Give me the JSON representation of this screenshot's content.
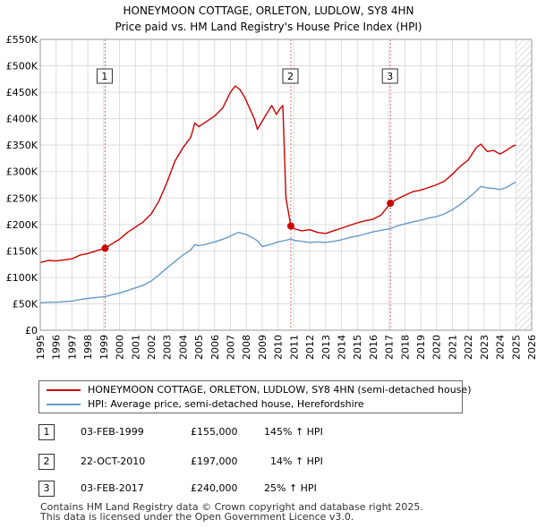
{
  "chart_data": {
    "type": "line",
    "title": "HONEYMOON COTTAGE, ORLETON, LUDLOW, SY8 4HN",
    "subtitle": "Price paid vs. HM Land Registry's House Price Index (HPI)",
    "xlabel": "",
    "ylabel": "",
    "xlim": [
      1995,
      2026
    ],
    "ylim": [
      0,
      550000
    ],
    "x_ticks": [
      "1995",
      "1996",
      "1997",
      "1998",
      "1999",
      "2000",
      "2001",
      "2002",
      "2003",
      "2004",
      "2005",
      "2006",
      "2007",
      "2008",
      "2009",
      "2010",
      "2011",
      "2012",
      "2013",
      "2014",
      "2015",
      "2016",
      "2017",
      "2018",
      "2019",
      "2020",
      "2021",
      "2022",
      "2023",
      "2024",
      "2025",
      "2026"
    ],
    "y_ticks": [
      {
        "value": 0,
        "label": "£0"
      },
      {
        "value": 50000,
        "label": "£50K"
      },
      {
        "value": 100000,
        "label": "£100K"
      },
      {
        "value": 150000,
        "label": "£150K"
      },
      {
        "value": 200000,
        "label": "£200K"
      },
      {
        "value": 250000,
        "label": "£250K"
      },
      {
        "value": 300000,
        "label": "£300K"
      },
      {
        "value": 350000,
        "label": "£350K"
      },
      {
        "value": 400000,
        "label": "£400K"
      },
      {
        "value": 450000,
        "label": "£450K"
      },
      {
        "value": 500000,
        "label": "£500K"
      },
      {
        "value": 550000,
        "label": "£550K"
      }
    ],
    "series": [
      {
        "name": "HONEYMOON COTTAGE, ORLETON, LUDLOW, SY8 4HN (semi-detached house)",
        "color": "#cc0000",
        "points": [
          [
            1995.0,
            128000
          ],
          [
            1995.5,
            132000
          ],
          [
            1996.0,
            131000
          ],
          [
            1996.5,
            133000
          ],
          [
            1997.0,
            135000
          ],
          [
            1997.5,
            142000
          ],
          [
            1998.0,
            145000
          ],
          [
            1998.5,
            150000
          ],
          [
            1999.09,
            155000
          ],
          [
            1999.5,
            163000
          ],
          [
            2000.0,
            172000
          ],
          [
            2000.5,
            185000
          ],
          [
            2001.0,
            195000
          ],
          [
            2001.5,
            205000
          ],
          [
            2002.0,
            220000
          ],
          [
            2002.5,
            245000
          ],
          [
            2003.0,
            280000
          ],
          [
            2003.5,
            320000
          ],
          [
            2004.0,
            345000
          ],
          [
            2004.5,
            365000
          ],
          [
            2004.75,
            392000
          ],
          [
            2005.0,
            385000
          ],
          [
            2005.5,
            395000
          ],
          [
            2006.0,
            405000
          ],
          [
            2006.5,
            420000
          ],
          [
            2007.0,
            450000
          ],
          [
            2007.3,
            462000
          ],
          [
            2007.6,
            455000
          ],
          [
            2007.9,
            440000
          ],
          [
            2008.2,
            420000
          ],
          [
            2008.5,
            400000
          ],
          [
            2008.7,
            380000
          ],
          [
            2009.0,
            395000
          ],
          [
            2009.3,
            410000
          ],
          [
            2009.6,
            425000
          ],
          [
            2009.9,
            408000
          ],
          [
            2010.1,
            418000
          ],
          [
            2010.3,
            425000
          ],
          [
            2010.5,
            250000
          ],
          [
            2010.81,
            197000
          ],
          [
            2011.0,
            192000
          ],
          [
            2011.5,
            188000
          ],
          [
            2012.0,
            190000
          ],
          [
            2012.5,
            185000
          ],
          [
            2013.0,
            183000
          ],
          [
            2013.5,
            188000
          ],
          [
            2014.0,
            193000
          ],
          [
            2014.5,
            198000
          ],
          [
            2015.0,
            203000
          ],
          [
            2015.5,
            207000
          ],
          [
            2016.0,
            210000
          ],
          [
            2016.5,
            218000
          ],
          [
            2017.09,
            240000
          ],
          [
            2017.5,
            248000
          ],
          [
            2018.0,
            255000
          ],
          [
            2018.5,
            262000
          ],
          [
            2019.0,
            265000
          ],
          [
            2019.5,
            270000
          ],
          [
            2020.0,
            275000
          ],
          [
            2020.5,
            282000
          ],
          [
            2021.0,
            295000
          ],
          [
            2021.5,
            310000
          ],
          [
            2022.0,
            322000
          ],
          [
            2022.5,
            345000
          ],
          [
            2022.8,
            352000
          ],
          [
            2023.2,
            338000
          ],
          [
            2023.6,
            340000
          ],
          [
            2024.0,
            333000
          ],
          [
            2024.4,
            340000
          ],
          [
            2024.8,
            348000
          ],
          [
            2025.0,
            350000
          ]
        ]
      },
      {
        "name": "HPI: Average price, semi-detached house, Herefordshire",
        "color": "#6699cc",
        "points": [
          [
            1995.0,
            52000
          ],
          [
            1995.5,
            53000
          ],
          [
            1996.0,
            53000
          ],
          [
            1996.5,
            54000
          ],
          [
            1997.0,
            55000
          ],
          [
            1997.5,
            58000
          ],
          [
            1998.0,
            60000
          ],
          [
            1998.5,
            62000
          ],
          [
            1999.09,
            63300
          ],
          [
            1999.5,
            67000
          ],
          [
            2000.0,
            70000
          ],
          [
            2000.5,
            75000
          ],
          [
            2001.0,
            80000
          ],
          [
            2001.5,
            85000
          ],
          [
            2002.0,
            93000
          ],
          [
            2002.5,
            105000
          ],
          [
            2003.0,
            118000
          ],
          [
            2003.5,
            130000
          ],
          [
            2004.0,
            142000
          ],
          [
            2004.5,
            152000
          ],
          [
            2004.75,
            162000
          ],
          [
            2005.0,
            160000
          ],
          [
            2005.5,
            163000
          ],
          [
            2006.0,
            167000
          ],
          [
            2006.5,
            172000
          ],
          [
            2007.0,
            178000
          ],
          [
            2007.5,
            185000
          ],
          [
            2008.0,
            181000
          ],
          [
            2008.5,
            173000
          ],
          [
            2008.75,
            168000
          ],
          [
            2009.0,
            158000
          ],
          [
            2009.5,
            162000
          ],
          [
            2010.0,
            167000
          ],
          [
            2010.5,
            170000
          ],
          [
            2010.81,
            172800
          ],
          [
            2011.0,
            170000
          ],
          [
            2011.5,
            168000
          ],
          [
            2012.0,
            166000
          ],
          [
            2012.5,
            167000
          ],
          [
            2013.0,
            166000
          ],
          [
            2013.5,
            168000
          ],
          [
            2014.0,
            171000
          ],
          [
            2014.5,
            175000
          ],
          [
            2015.0,
            178000
          ],
          [
            2015.5,
            182000
          ],
          [
            2016.0,
            186000
          ],
          [
            2016.5,
            189000
          ],
          [
            2017.09,
            192000
          ],
          [
            2017.5,
            197000
          ],
          [
            2018.0,
            201000
          ],
          [
            2018.5,
            205000
          ],
          [
            2019.0,
            208000
          ],
          [
            2019.5,
            212000
          ],
          [
            2020.0,
            215000
          ],
          [
            2020.5,
            220000
          ],
          [
            2021.0,
            228000
          ],
          [
            2021.5,
            238000
          ],
          [
            2022.0,
            250000
          ],
          [
            2022.5,
            263000
          ],
          [
            2022.8,
            272000
          ],
          [
            2023.2,
            269000
          ],
          [
            2023.6,
            268000
          ],
          [
            2024.0,
            266000
          ],
          [
            2024.4,
            270000
          ],
          [
            2024.8,
            277000
          ],
          [
            2025.0,
            280000
          ]
        ]
      }
    ],
    "sales": [
      {
        "label": "1",
        "x": 1999.09,
        "value": 155000
      },
      {
        "label": "2",
        "x": 2010.81,
        "value": 197000
      },
      {
        "label": "3",
        "x": 2017.09,
        "value": 240000
      }
    ],
    "shaded_region": {
      "from": 1995.0,
      "to": 1995.0
    },
    "hatched_region": {
      "from": 2025.0,
      "to": 2026.0
    }
  },
  "legend": [
    {
      "label": "HONEYMOON COTTAGE, ORLETON, LUDLOW, SY8 4HN (semi-detached house)",
      "color": "#cc0000"
    },
    {
      "label": "HPI: Average price, semi-detached house, Herefordshire",
      "color": "#6699cc"
    }
  ],
  "sales_table": [
    {
      "num": "1",
      "date": "03-FEB-1999",
      "price": "£155,000",
      "hpi": "145% ↑ HPI"
    },
    {
      "num": "2",
      "date": "22-OCT-2010",
      "price": "£197,000",
      "hpi": "14% ↑ HPI"
    },
    {
      "num": "3",
      "date": "03-FEB-2017",
      "price": "£240,000",
      "hpi": "25% ↑ HPI"
    }
  ],
  "footer": {
    "line1": "Contains HM Land Registry data © Crown copyright and database right 2025.",
    "line2": "This data is licensed under the Open Government Licence v3.0."
  },
  "colors": {
    "grid": "#dddddd",
    "plot_bg": "#ffffff",
    "vline": "#e07070"
  }
}
